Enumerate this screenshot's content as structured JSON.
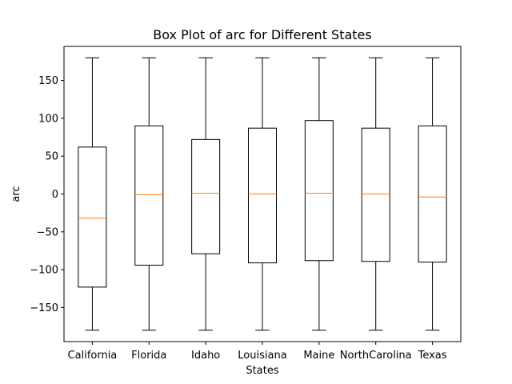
{
  "chart_data": {
    "type": "box",
    "title": "Box Plot of arc for Different States",
    "xlabel": "States",
    "ylabel": "arc",
    "ylim": [
      -195,
      195
    ],
    "yticks": [
      -150,
      -100,
      -50,
      0,
      50,
      100,
      150
    ],
    "categories": [
      "California",
      "Florida",
      "Idaho",
      "Louisiana",
      "Maine",
      "NorthCarolina",
      "Texas"
    ],
    "boxes": [
      {
        "category": "California",
        "whisker_low": -180,
        "q1": -123,
        "median": -32,
        "q3": 62,
        "whisker_high": 180
      },
      {
        "category": "Florida",
        "whisker_low": -180,
        "q1": -94,
        "median": -1,
        "q3": 90,
        "whisker_high": 180
      },
      {
        "category": "Idaho",
        "whisker_low": -180,
        "q1": -79,
        "median": 1,
        "q3": 72,
        "whisker_high": 180
      },
      {
        "category": "Louisiana",
        "whisker_low": -180,
        "q1": -91,
        "median": 0,
        "q3": 87,
        "whisker_high": 180
      },
      {
        "category": "Maine",
        "whisker_low": -180,
        "q1": -88,
        "median": 1,
        "q3": 97,
        "whisker_high": 180
      },
      {
        "category": "NorthCarolina",
        "whisker_low": -180,
        "q1": -89,
        "median": 0,
        "q3": 87,
        "whisker_high": 180
      },
      {
        "category": "Texas",
        "whisker_low": -180,
        "q1": -90,
        "median": -4,
        "q3": 90,
        "whisker_high": 180
      }
    ],
    "grid": false,
    "colors": {
      "box": "#000000",
      "median": "#ff7f0e",
      "background": "#ffffff"
    }
  }
}
